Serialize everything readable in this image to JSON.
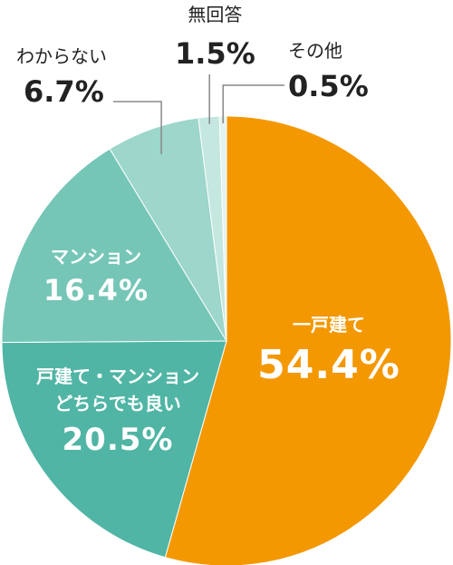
{
  "chart_data": {
    "type": "pie",
    "title": "",
    "slices": [
      {
        "label": "一戸建て",
        "value": 54.4,
        "display": "54.4%",
        "color": "#f39800",
        "label_position": "inside"
      },
      {
        "label": "戸建て・マンションどちらでも良い",
        "label_lines": [
          "戸建て・マンション",
          "どちらでも良い"
        ],
        "value": 20.5,
        "display": "20.5%",
        "color": "#50b5a5",
        "label_position": "inside"
      },
      {
        "label": "マンション",
        "value": 16.4,
        "display": "16.4%",
        "color": "#75c6b7",
        "label_position": "inside"
      },
      {
        "label": "わからない",
        "value": 6.7,
        "display": "6.7%",
        "color": "#9dd6cb",
        "label_position": "outside"
      },
      {
        "label": "無回答",
        "value": 1.5,
        "display": "1.5%",
        "color": "#c4e7e0",
        "label_position": "outside"
      },
      {
        "label": "その他",
        "value": 0.5,
        "display": "0.5%",
        "color": "#e3f3ef",
        "label_position": "outside"
      }
    ],
    "start_angle": "12 o'clock",
    "direction": "clockwise",
    "legend": "none"
  }
}
